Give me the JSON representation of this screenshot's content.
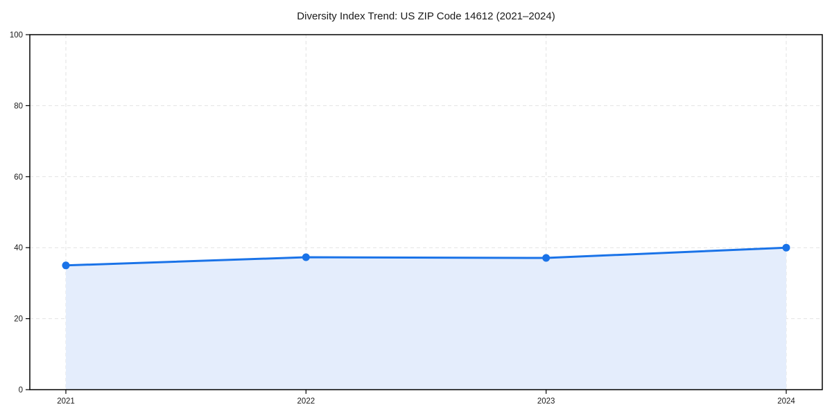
{
  "chart_data": {
    "type": "area",
    "title": "Diversity Index Trend: US ZIP Code 14612 (2021–2024)",
    "xlabel": "",
    "ylabel": "",
    "x": [
      2021,
      2022,
      2023,
      2024
    ],
    "categories": [
      "2021",
      "2022",
      "2023",
      "2024"
    ],
    "series": [
      {
        "name": "Diversity Index",
        "values": [
          35,
          37.3,
          37.1,
          40
        ]
      }
    ],
    "ylim": [
      0,
      100
    ],
    "xlim": [
      2021,
      2024
    ],
    "yticks": [
      0,
      20,
      40,
      60,
      80,
      100
    ],
    "xtick_labels": [
      "2021",
      "2022",
      "2023",
      "2024"
    ],
    "grid": "both-dashed",
    "legend": "none",
    "marker": "circle",
    "colors": {
      "line": "#1a73e8",
      "marker": "#1a73e8",
      "area_fill": "#e4edfc",
      "grid": "#e2e2e2",
      "spine": "#000000",
      "tick_text": "#1a1a1a",
      "title_text": "#1a1a1a",
      "background": "#ffffff"
    }
  }
}
